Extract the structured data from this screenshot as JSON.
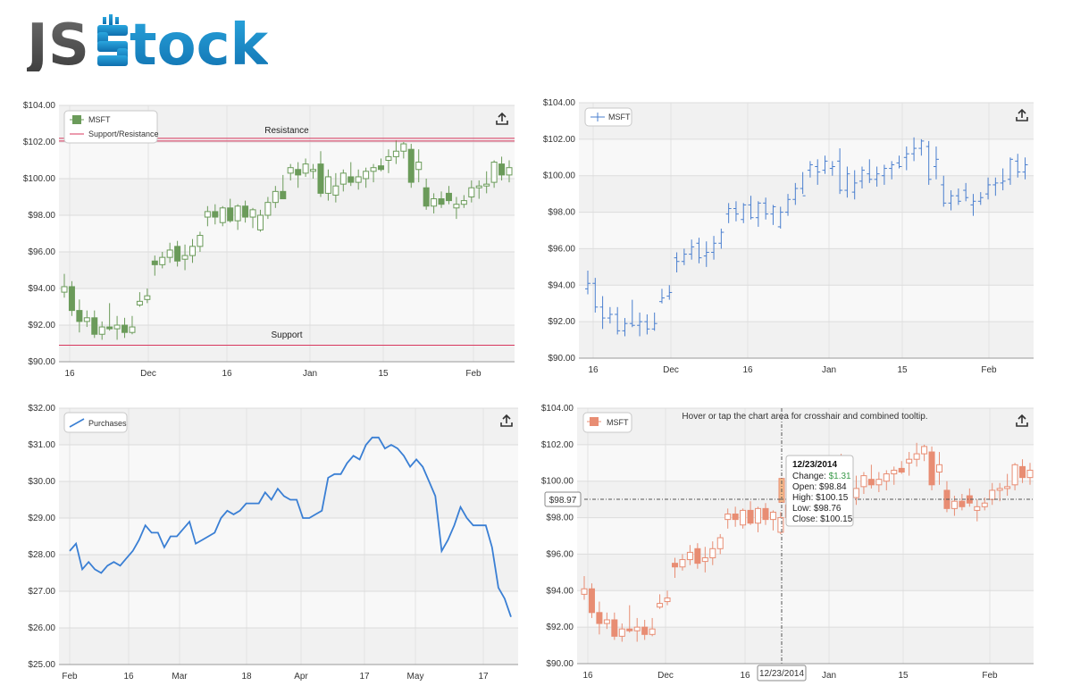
{
  "brand": {
    "left": "JS",
    "right": "tock"
  },
  "colors": {
    "green": "#6b9b5a",
    "blue": "#4a7fcf",
    "salmon": "#e88d73",
    "line_blue": "#3a7fd4",
    "sr_red": "#d8375e"
  },
  "chart_data": [
    {
      "id": "candles_sr",
      "type": "candlestick",
      "legend": [
        "MSFT",
        "Support/Resistance"
      ],
      "ylim": [
        90,
        104
      ],
      "y_ticks": [
        "$90.00",
        "$92.00",
        "$94.00",
        "$96.00",
        "$98.00",
        "$100.00",
        "$102.00",
        "$104.00"
      ],
      "x_ticks": [
        "16",
        "Dec",
        "16",
        "Jan",
        "15",
        "Feb"
      ],
      "annotations": {
        "resistance_label": "Resistance",
        "resistance_value": 102.2,
        "support_label": "Support",
        "support_value": 90.9
      }
    },
    {
      "id": "ohlc",
      "type": "ohlc",
      "legend": [
        "MSFT"
      ],
      "ylim": [
        90,
        104
      ],
      "y_ticks": [
        "$90.00",
        "$92.00",
        "$94.00",
        "$96.00",
        "$98.00",
        "$100.00",
        "$102.00",
        "$104.00"
      ],
      "x_ticks": [
        "16",
        "Dec",
        "16",
        "Jan",
        "15",
        "Feb"
      ]
    },
    {
      "id": "line_purchases",
      "type": "line",
      "legend": [
        "Purchases"
      ],
      "ylim": [
        25,
        32
      ],
      "y_ticks": [
        "$25.00",
        "$26.00",
        "$27.00",
        "$28.00",
        "$29.00",
        "$30.00",
        "$31.00",
        "$32.00"
      ],
      "x_ticks": [
        "Feb",
        "16",
        "Mar",
        "18",
        "Apr",
        "17",
        "May",
        "17"
      ],
      "values": [
        28.1,
        28.3,
        27.6,
        27.8,
        27.6,
        27.5,
        27.7,
        27.8,
        27.7,
        27.9,
        28.1,
        28.4,
        28.8,
        28.6,
        28.6,
        28.2,
        28.5,
        28.5,
        28.7,
        28.9,
        28.3,
        28.4,
        28.5,
        28.6,
        29.0,
        29.2,
        29.1,
        29.2,
        29.4,
        29.4,
        29.4,
        29.7,
        29.5,
        29.8,
        29.6,
        29.5,
        29.5,
        29.0,
        29.0,
        29.1,
        29.2,
        30.1,
        30.2,
        30.2,
        30.5,
        30.7,
        30.6,
        31.0,
        31.2,
        31.2,
        30.9,
        31.0,
        30.9,
        30.7,
        30.4,
        30.6,
        30.4,
        30.0,
        29.6,
        28.1,
        28.4,
        28.8,
        29.3,
        29.0,
        28.8,
        28.8,
        28.8,
        28.2,
        27.1,
        26.8,
        26.3
      ]
    },
    {
      "id": "candles_tooltip",
      "type": "candlestick",
      "legend": [
        "MSFT"
      ],
      "ylim": [
        90,
        104
      ],
      "y_ticks": [
        "$90.00",
        "$92.00",
        "$94.00",
        "$96.00",
        "$98.00",
        "$100.00",
        "$102.00",
        "$104.00"
      ],
      "x_ticks": [
        "16",
        "Dec",
        "16",
        "Jan",
        "15",
        "Feb"
      ],
      "hint": "Hover or tap the chart area for crosshair and combined tooltip.",
      "crosshair": {
        "y_label": "$98.97",
        "x_label": "12/23/2014"
      },
      "tooltip": {
        "date": "12/23/2014",
        "change_label": "Change:",
        "change_value": "$1.31",
        "open": "Open: $98.84",
        "high": "High: $100.15",
        "low": "Low: $98.76",
        "close": "Close: $100.15"
      }
    }
  ],
  "ohlc_series": [
    [
      93.8,
      94.8,
      93.5,
      94.1
    ],
    [
      94.1,
      94.4,
      92.5,
      92.8
    ],
    [
      92.8,
      93.4,
      91.6,
      92.2
    ],
    [
      92.2,
      92.8,
      91.9,
      92.4
    ],
    [
      92.4,
      92.8,
      91.3,
      91.5
    ],
    [
      91.5,
      92.2,
      91.2,
      91.9
    ],
    [
      91.9,
      93.2,
      91.7,
      91.8
    ],
    [
      91.8,
      92.5,
      91.2,
      92.0
    ],
    [
      92.0,
      92.4,
      91.3,
      91.6
    ],
    [
      91.6,
      92.5,
      91.5,
      91.9
    ],
    [
      93.1,
      93.8,
      93.0,
      93.3
    ],
    [
      93.4,
      94.0,
      93.2,
      93.6
    ],
    [
      95.5,
      95.8,
      94.7,
      95.3
    ],
    [
      95.3,
      96.0,
      95.1,
      95.7
    ],
    [
      95.7,
      96.5,
      95.4,
      96.1
    ],
    [
      96.3,
      96.6,
      95.2,
      95.5
    ],
    [
      95.6,
      96.4,
      95.0,
      95.8
    ],
    [
      95.8,
      96.7,
      95.4,
      96.3
    ],
    [
      96.3,
      97.1,
      96.0,
      96.9
    ],
    [
      97.9,
      98.5,
      97.4,
      98.2
    ],
    [
      98.2,
      98.6,
      97.5,
      97.9
    ],
    [
      97.6,
      98.5,
      97.4,
      98.4
    ],
    [
      98.4,
      98.9,
      97.6,
      97.7
    ],
    [
      97.7,
      98.6,
      97.2,
      98.5
    ],
    [
      98.5,
      98.8,
      97.6,
      97.9
    ],
    [
      97.9,
      98.4,
      97.3,
      98.3
    ],
    [
      97.2,
      98.3,
      97.1,
      98.0
    ],
    [
      98.0,
      99.0,
      97.8,
      98.7
    ],
    [
      98.7,
      99.6,
      98.4,
      99.3
    ],
    [
      99.3,
      100.2,
      99.0,
      98.9
    ],
    [
      100.3,
      100.8,
      99.9,
      100.6
    ],
    [
      100.5,
      100.9,
      99.5,
      100.2
    ],
    [
      100.3,
      101.1,
      100.1,
      100.8
    ],
    [
      100.4,
      100.8,
      100.0,
      100.5
    ],
    [
      100.8,
      101.5,
      99.0,
      99.2
    ],
    [
      99.2,
      100.5,
      98.8,
      100.1
    ],
    [
      99.1,
      100.3,
      98.7,
      99.6
    ],
    [
      99.7,
      100.5,
      99.3,
      100.3
    ],
    [
      100.1,
      100.9,
      99.6,
      99.8
    ],
    [
      99.8,
      100.5,
      99.4,
      100.1
    ],
    [
      100.0,
      100.6,
      99.5,
      100.4
    ],
    [
      100.4,
      100.8,
      99.8,
      100.6
    ],
    [
      100.7,
      101.1,
      100.4,
      100.5
    ],
    [
      101.0,
      101.6,
      100.3,
      101.2
    ],
    [
      101.2,
      102.1,
      100.8,
      101.5
    ],
    [
      101.5,
      102.0,
      101.1,
      101.9
    ],
    [
      101.6,
      101.9,
      99.5,
      99.8
    ],
    [
      100.5,
      101.6,
      99.8,
      100.9
    ],
    [
      99.5,
      100.0,
      98.3,
      98.5
    ],
    [
      98.5,
      99.2,
      98.1,
      98.9
    ],
    [
      98.9,
      99.3,
      98.4,
      98.6
    ],
    [
      99.2,
      99.6,
      98.6,
      98.8
    ],
    [
      98.4,
      99.0,
      97.8,
      98.6
    ],
    [
      98.6,
      99.1,
      98.4,
      98.8
    ],
    [
      99.0,
      99.9,
      98.7,
      99.5
    ],
    [
      99.5,
      99.9,
      98.9,
      99.6
    ],
    [
      99.6,
      100.4,
      99.2,
      99.7
    ],
    [
      99.8,
      101.0,
      99.5,
      100.9
    ],
    [
      100.8,
      101.2,
      99.9,
      100.2
    ],
    [
      100.2,
      101.0,
      99.8,
      100.6
    ]
  ]
}
